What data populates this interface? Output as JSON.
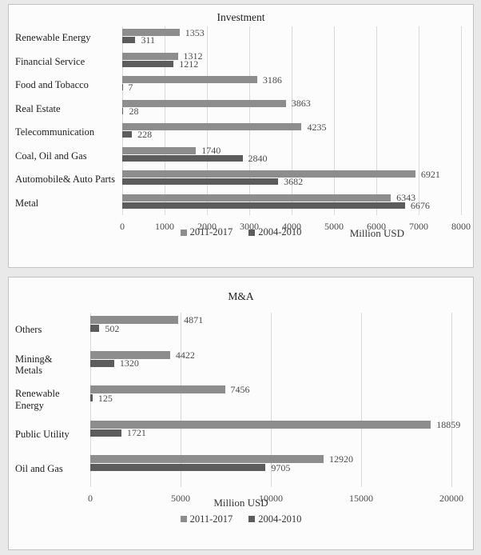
{
  "chart_data": [
    {
      "id": "investment",
      "type": "bar",
      "orientation": "horizontal",
      "title": "Investment",
      "xlabel": "Million USD",
      "xlim": [
        0,
        8000
      ],
      "xticks": [
        0,
        1000,
        2000,
        3000,
        4000,
        5000,
        6000,
        7000,
        8000
      ],
      "grid": "vertical",
      "legend_position": "bottom",
      "categories": [
        "Renewable Energy",
        "Financial Service",
        "Food and Tobacco",
        "Real Estate",
        "Telecommunication",
        "Coal, Oil and Gas",
        "Automobile& Auto Parts",
        "Metal"
      ],
      "series": [
        {
          "name": "2011-2017",
          "color": "#8d8d8d",
          "values": [
            1353,
            1312,
            3186,
            3863,
            4235,
            1740,
            6921,
            6343
          ]
        },
        {
          "name": "2004-2010",
          "color": "#5c5c5c",
          "values": [
            311,
            1212,
            7,
            28,
            228,
            2840,
            3682,
            6676
          ]
        }
      ]
    },
    {
      "id": "ma",
      "type": "bar",
      "orientation": "horizontal",
      "title": "M&A",
      "xlabel": "Million USD",
      "xlim": [
        0,
        20000
      ],
      "xticks": [
        0,
        5000,
        10000,
        15000,
        20000
      ],
      "grid": "vertical",
      "legend_position": "bottom",
      "categories": [
        "Others",
        "Mining& Metals",
        "Renewable Energy",
        "Public Utility",
        "Oil and Gas"
      ],
      "series": [
        {
          "name": "2011-2017",
          "color": "#8d8d8d",
          "values": [
            4871,
            4422,
            7456,
            18859,
            12920
          ]
        },
        {
          "name": "2004-2010",
          "color": "#5c5c5c",
          "values": [
            502,
            1320,
            125,
            1721,
            9705
          ]
        }
      ]
    }
  ]
}
